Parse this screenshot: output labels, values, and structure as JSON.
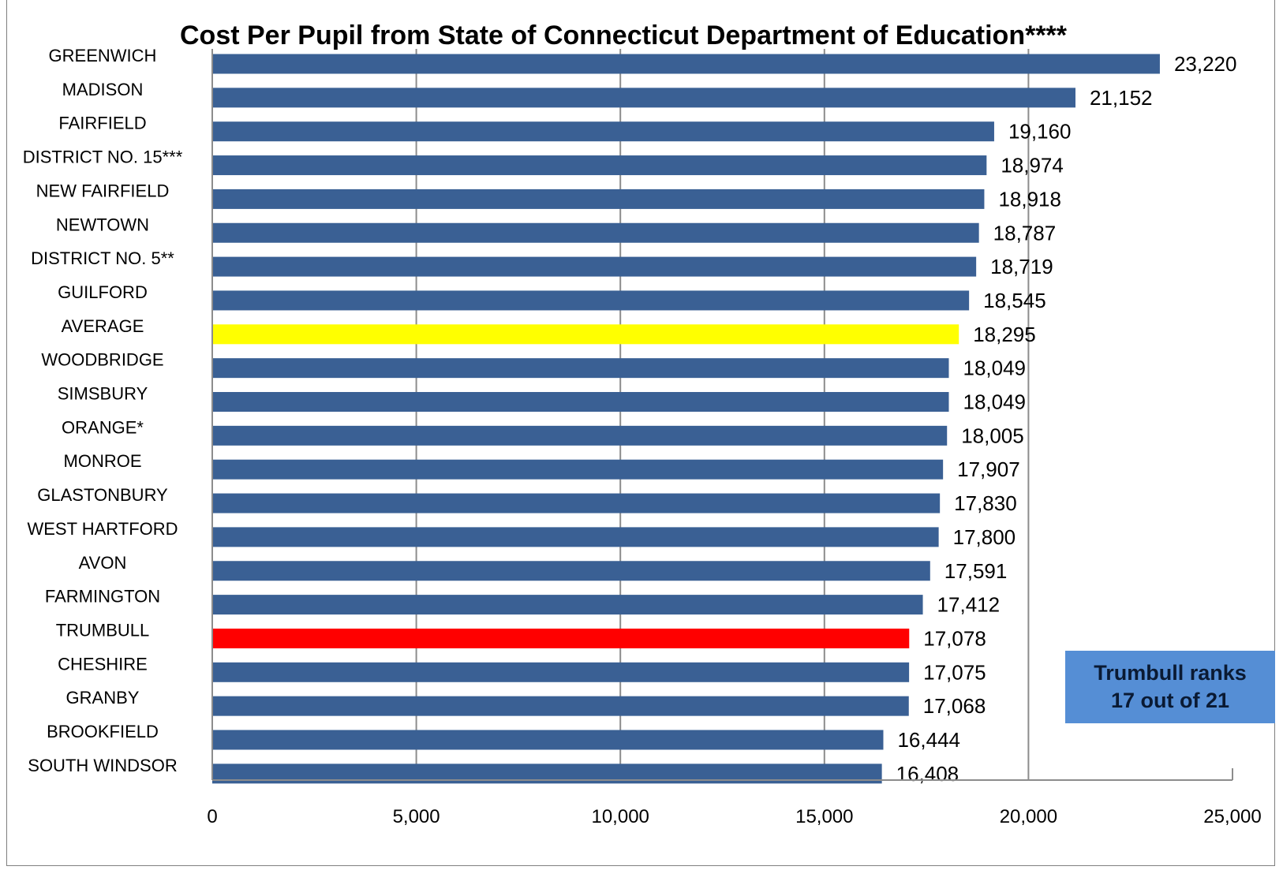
{
  "colors": {
    "bar_default": "#3A6094",
    "bar_average": "#FFFF00",
    "bar_highlight": "#FF0000",
    "grid": "#8c8c8c",
    "axis": "#8c8c8c",
    "callout_bg": "#558ED5"
  },
  "callout": {
    "line1": "Trumbull ranks",
    "line2": "17 out of 21"
  },
  "chart_data": {
    "type": "bar",
    "orientation": "horizontal",
    "title": "Cost Per Pupil from State of Connecticut Department of Education****",
    "xlabel": "",
    "ylabel": "",
    "xlim": [
      0,
      25000
    ],
    "xticks": [
      0,
      5000,
      10000,
      15000,
      20000,
      25000
    ],
    "xtick_labels": [
      "0",
      "5,000",
      "10,000",
      "15,000",
      "20,000",
      "25,000"
    ],
    "grid": "vertical",
    "categories": [
      "GREENWICH",
      "MADISON",
      "FAIRFIELD",
      "DISTRICT NO. 15***",
      "NEW FAIRFIELD",
      "NEWTOWN",
      "DISTRICT NO. 5**",
      "GUILFORD",
      "AVERAGE",
      "WOODBRIDGE",
      "SIMSBURY",
      "ORANGE*",
      "MONROE",
      "GLASTONBURY",
      "WEST HARTFORD",
      "AVON",
      "FARMINGTON",
      "TRUMBULL",
      "CHESHIRE",
      "GRANBY",
      "BROOKFIELD",
      "SOUTH WINDSOR"
    ],
    "values": [
      23220,
      21152,
      19160,
      18974,
      18918,
      18787,
      18719,
      18545,
      18295,
      18049,
      18049,
      18005,
      17907,
      17830,
      17800,
      17591,
      17412,
      17078,
      17075,
      17068,
      16444,
      16408
    ],
    "data_labels": [
      "23,220",
      "21,152",
      "19,160",
      "18,974",
      "18,918",
      "18,787",
      "18,719",
      "18,545",
      "18,295",
      "18,049",
      "18,049",
      "18,005",
      "17,907",
      "17,830",
      "17,800",
      "17,591",
      "17,412",
      "17,078",
      "17,075",
      "17,068",
      "16,444",
      "16,408"
    ],
    "highlight": {
      "AVERAGE": "#FFFF00",
      "TRUMBULL": "#FF0000"
    }
  }
}
